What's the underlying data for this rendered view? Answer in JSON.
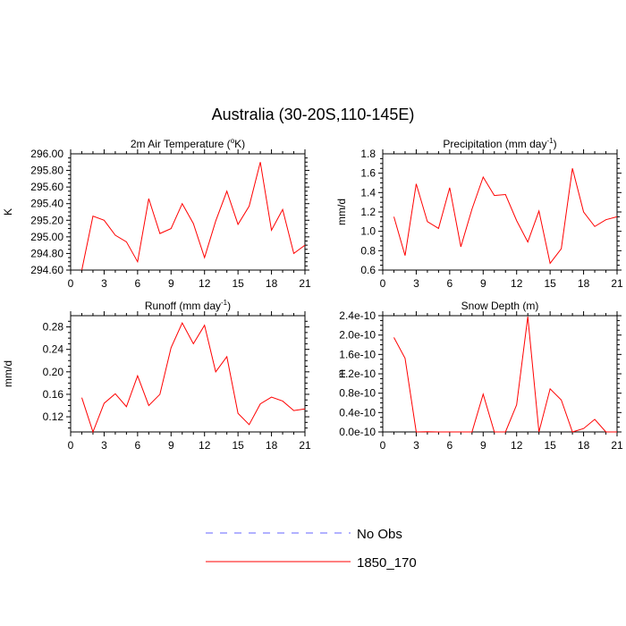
{
  "title": "Australia (30-20S,110-145E)",
  "colors": {
    "line": "#ff0000",
    "no_obs": "#6666ff",
    "axis": "#000000"
  },
  "legend": [
    {
      "label": "No Obs",
      "style": "dashed",
      "color": "#6666ff"
    },
    {
      "label": "1850_170",
      "style": "solid",
      "color": "#ff0000"
    }
  ],
  "chart_data": [
    {
      "type": "line",
      "title_main": "2m Air Temperature (",
      "title_sup": "o",
      "title_tail": "K)",
      "ylabel": "K",
      "xlim": [
        0,
        21
      ],
      "ylim": [
        294.6,
        296.0
      ],
      "xticks": [
        0,
        3,
        6,
        9,
        12,
        15,
        18,
        21
      ],
      "xtick_labels": [
        "0",
        "3",
        "6",
        "9",
        "12",
        "15",
        "18",
        "21"
      ],
      "yticks": [
        294.6,
        294.8,
        295.0,
        295.2,
        295.4,
        295.6,
        295.8,
        296.0
      ],
      "ytick_labels": [
        "294.60",
        "294.80",
        "295.00",
        "295.20",
        "295.40",
        "295.60",
        "295.80",
        "296.00"
      ],
      "series": [
        {
          "name": "1850_170",
          "x": [
            1,
            2,
            3,
            4,
            5,
            6,
            7,
            8,
            9,
            10,
            11,
            12,
            13,
            14,
            15,
            16,
            17,
            18,
            19,
            20,
            21
          ],
          "values": [
            294.6,
            295.25,
            295.2,
            295.02,
            294.94,
            294.7,
            295.46,
            295.04,
            295.1,
            295.4,
            295.16,
            294.75,
            295.19,
            295.55,
            295.15,
            295.37,
            295.9,
            295.08,
            295.33,
            294.8,
            294.9
          ]
        }
      ]
    },
    {
      "type": "line",
      "title_main": "Precipitation (mm day",
      "title_sup": "-1",
      "title_tail": ")",
      "ylabel": "mm/d",
      "xlim": [
        0,
        21
      ],
      "ylim": [
        0.6,
        1.8
      ],
      "xticks": [
        0,
        3,
        6,
        9,
        12,
        15,
        18,
        21
      ],
      "xtick_labels": [
        "0",
        "3",
        "6",
        "9",
        "12",
        "15",
        "18",
        "21"
      ],
      "yticks": [
        0.6,
        0.8,
        1.0,
        1.2,
        1.4,
        1.6,
        1.8
      ],
      "ytick_labels": [
        "0.6",
        "0.8",
        "1.0",
        "1.2",
        "1.4",
        "1.6",
        "1.8"
      ],
      "series": [
        {
          "name": "1850_170",
          "x": [
            1,
            2,
            3,
            4,
            5,
            6,
            7,
            8,
            9,
            10,
            11,
            12,
            13,
            14,
            15,
            16,
            17,
            18,
            19,
            20,
            21
          ],
          "values": [
            1.15,
            0.75,
            1.49,
            1.1,
            1.03,
            1.45,
            0.84,
            1.23,
            1.56,
            1.37,
            1.38,
            1.11,
            0.89,
            1.21,
            0.67,
            0.82,
            1.65,
            1.2,
            1.05,
            1.12,
            1.15
          ]
        }
      ]
    },
    {
      "type": "line",
      "title_main": "Runoff (mm day",
      "title_sup": "-1",
      "title_tail": ")",
      "ylabel": "mm/d",
      "xlim": [
        0,
        21
      ],
      "ylim": [
        0.093,
        0.3
      ],
      "xticks": [
        0,
        3,
        6,
        9,
        12,
        15,
        18,
        21
      ],
      "xtick_labels": [
        "0",
        "3",
        "6",
        "9",
        "12",
        "15",
        "18",
        "21"
      ],
      "yticks": [
        0.12,
        0.16,
        0.2,
        0.24,
        0.28
      ],
      "ytick_labels": [
        "0.12",
        "0.16",
        "0.20",
        "0.24",
        "0.28"
      ],
      "series": [
        {
          "name": "1850_170",
          "x": [
            1,
            2,
            3,
            4,
            5,
            6,
            7,
            8,
            9,
            10,
            11,
            12,
            13,
            14,
            15,
            16,
            17,
            18,
            19,
            20,
            21
          ],
          "values": [
            0.154,
            0.093,
            0.144,
            0.161,
            0.138,
            0.193,
            0.14,
            0.16,
            0.243,
            0.287,
            0.25,
            0.283,
            0.2,
            0.227,
            0.126,
            0.106,
            0.143,
            0.155,
            0.148,
            0.131,
            0.134
          ]
        }
      ]
    },
    {
      "type": "line",
      "title_main": "Snow Depth (m)",
      "title_sup": "",
      "title_tail": "",
      "ylabel": "m",
      "xlim": [
        0,
        21
      ],
      "ylim": [
        0,
        2.4e-10
      ],
      "xticks": [
        0,
        3,
        6,
        9,
        12,
        15,
        18,
        21
      ],
      "xtick_labels": [
        "0",
        "3",
        "6",
        "9",
        "12",
        "15",
        "18",
        "21"
      ],
      "yticks": [
        0,
        4e-11,
        8e-11,
        1.2e-10,
        1.6e-10,
        2e-10,
        2.4e-10
      ],
      "ytick_labels": [
        "0.0e-10",
        "0.4e-10",
        "0.8e-10",
        "1.2e-10",
        "1.6e-10",
        "2.0e-10",
        "2.4e-10"
      ],
      "series": [
        {
          "name": "1850_170",
          "x": [
            1,
            2,
            3,
            4,
            5,
            6,
            7,
            8,
            9,
            10,
            11,
            12,
            13,
            14,
            15,
            16,
            17,
            18,
            19,
            20,
            21
          ],
          "values": [
            1.95e-10,
            1.52e-10,
            0,
            4e-13,
            0,
            0,
            0,
            0,
            7.8e-11,
            0,
            0,
            5.6e-11,
            2.38e-10,
            0,
            8.9e-11,
            6.6e-11,
            0,
            7e-12,
            2.6e-11,
            0,
            0
          ]
        }
      ]
    }
  ]
}
